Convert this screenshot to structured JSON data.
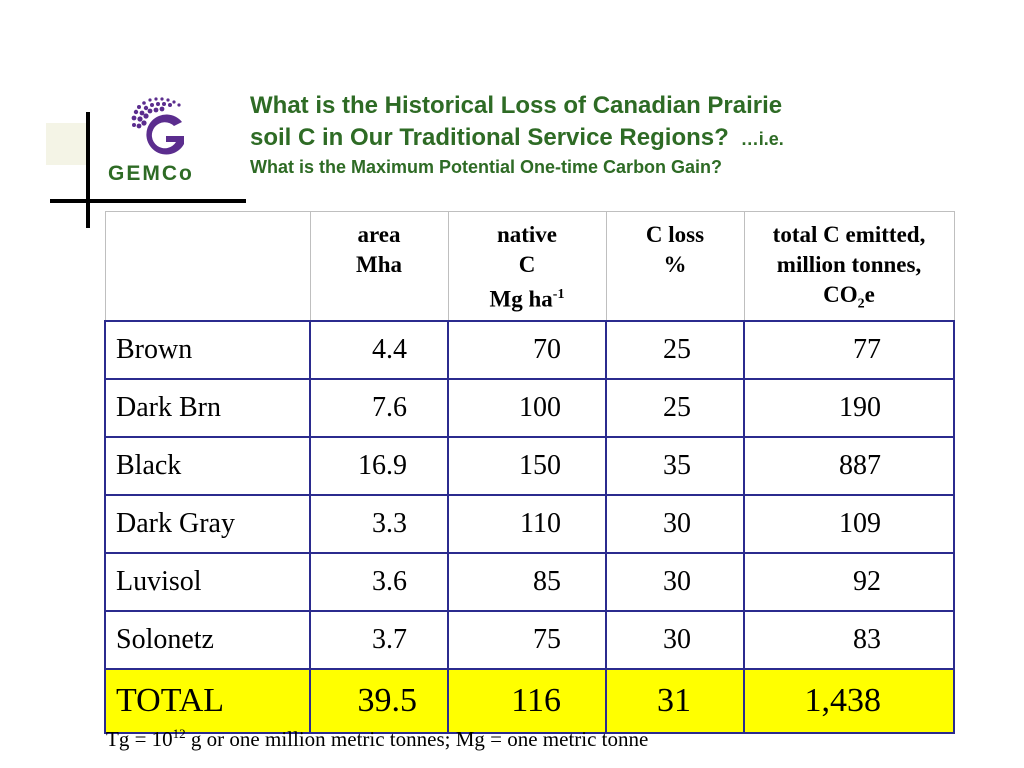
{
  "logo": {
    "text": "GEMCo"
  },
  "title": {
    "line1": "What is the Historical Loss of Canadian Prairie",
    "line2": "soil C in Our Traditional Service Regions?",
    "aside": "…i.e.",
    "subtitle": "What is the Maximum Potential One-time Carbon Gain?"
  },
  "table": {
    "headers": {
      "area_line1": "area",
      "area_line2": "Mha",
      "native_line1": "native",
      "native_line2": "C",
      "native_line3": "Mg ha",
      "native_sup": "-1",
      "closs_line1": "C loss",
      "closs_line2": "%",
      "total_line1": "total C emitted,",
      "total_line2": "million tonnes,",
      "total_co": "CO",
      "total_sub": "2",
      "total_e": "e"
    },
    "rows": [
      {
        "label": "Brown",
        "area": "4.4",
        "native": "70",
        "closs": "25",
        "total": "77"
      },
      {
        "label": "Dark Brn",
        "area": "7.6",
        "native": "100",
        "closs": "25",
        "total": "190"
      },
      {
        "label": "Black",
        "area": "16.9",
        "native": "150",
        "closs": "35",
        "total": "887"
      },
      {
        "label": "Dark Gray",
        "area": "3.3",
        "native": "110",
        "closs": "30",
        "total": "109"
      },
      {
        "label": "Luvisol",
        "area": "3.6",
        "native": "85",
        "closs": "30",
        "total": "92"
      },
      {
        "label": "Solonetz",
        "area": "3.7",
        "native": "75",
        "closs": "30",
        "total": "83"
      }
    ],
    "total_row": {
      "label": "TOTAL",
      "area": "39.5",
      "native": "116",
      "closs": "31",
      "total": "1,438"
    }
  },
  "footnote": {
    "prefix": "Tg = 10",
    "sup": "12",
    "suffix": " g or one million metric tonnes; Mg = one metric tonne"
  },
  "colors": {
    "title_green": "#2e6b25",
    "table_border_blue": "#2b2b8e",
    "total_highlight": "#ffff00",
    "logo_purple": "#5b2d8e"
  },
  "chart_data": {
    "type": "table",
    "columns": [
      "",
      "area Mha",
      "native C Mg ha-1",
      "C loss %",
      "total C emitted, million tonnes, CO2e"
    ],
    "rows": [
      [
        "Brown",
        4.4,
        70,
        25,
        77
      ],
      [
        "Dark Brn",
        7.6,
        100,
        25,
        190
      ],
      [
        "Black",
        16.9,
        150,
        35,
        887
      ],
      [
        "Dark Gray",
        3.3,
        110,
        30,
        109
      ],
      [
        "Luvisol",
        3.6,
        85,
        30,
        92
      ],
      [
        "Solonetz",
        3.7,
        75,
        30,
        83
      ],
      [
        "TOTAL",
        39.5,
        116,
        31,
        1438
      ]
    ]
  }
}
